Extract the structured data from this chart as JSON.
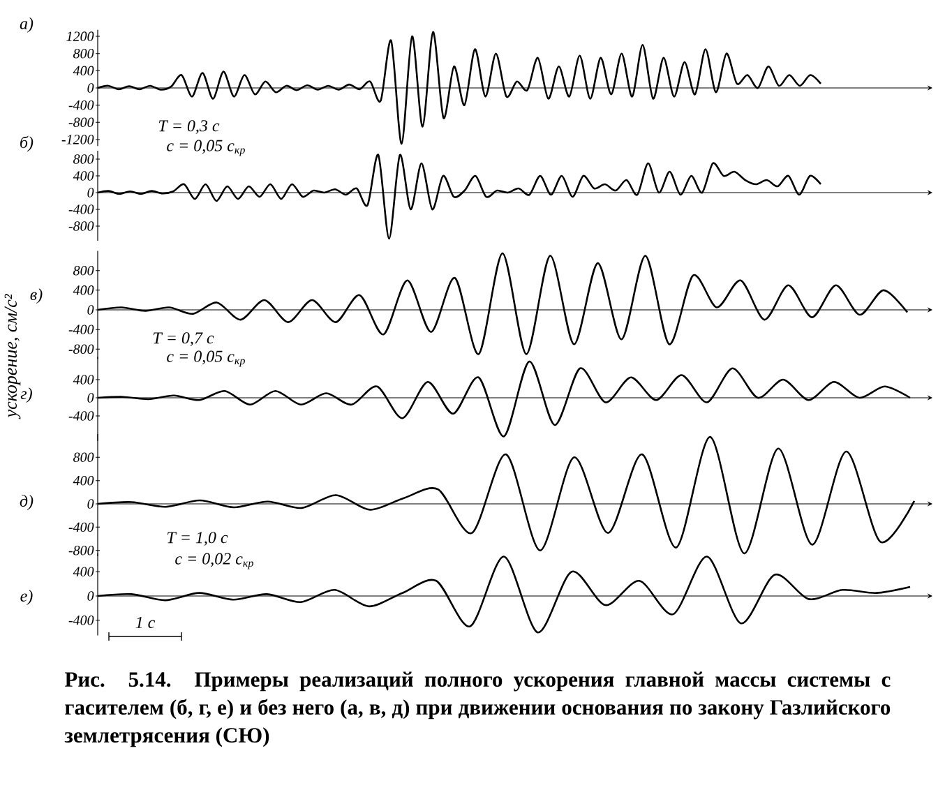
{
  "chart_data": [
    {
      "type": "line",
      "title": "а)",
      "color": "#000000",
      "tick_labels": "y",
      "categories": [
        null,
        null,
        null,
        null,
        null,
        null,
        null,
        null,
        null,
        null,
        null,
        null,
        null,
        null,
        null,
        null,
        null,
        null,
        null,
        null,
        null,
        null,
        null,
        null,
        null,
        null,
        null,
        null,
        null,
        null,
        null,
        null,
        null,
        null,
        null,
        null,
        null,
        null,
        null,
        null,
        null,
        null,
        null,
        null,
        null,
        null,
        null,
        null,
        null,
        null,
        null,
        null,
        null,
        null,
        null,
        null,
        null,
        null,
        null,
        null,
        null,
        null,
        null,
        null,
        null,
        null,
        null,
        null,
        null,
        null
      ],
      "values": [
        0,
        50,
        -30,
        40,
        -30,
        50,
        -40,
        30,
        300,
        -200,
        350,
        -250,
        380,
        -200,
        300,
        -150,
        150,
        -100,
        50,
        -50,
        60,
        -40,
        50,
        -40,
        80,
        -30,
        150,
        -300,
        1100,
        -1300,
        1200,
        -900,
        1300,
        -700,
        500,
        -400,
        900,
        -200,
        800,
        -200,
        150,
        -50,
        700,
        -250,
        500,
        -200,
        750,
        -250,
        700,
        -150,
        800,
        -200,
        1000,
        -250,
        700,
        -200,
        600,
        -150,
        900,
        -100,
        800,
        100,
        300,
        0,
        500,
        50,
        300,
        50,
        300,
        100
      ],
      "ylim": [
        -1350,
        1350
      ],
      "yticks": [
        -1200,
        -800,
        -400,
        0,
        400,
        800,
        1200
      ]
    },
    {
      "type": "line",
      "title": "б)",
      "color": "#000000",
      "tick_labels": "y",
      "categories": [
        null,
        null,
        null,
        null,
        null,
        null,
        null,
        null,
        null,
        null,
        null,
        null,
        null,
        null,
        null,
        null,
        null,
        null,
        null,
        null,
        null,
        null,
        null,
        null,
        null,
        null,
        null,
        null,
        null,
        null,
        null,
        null,
        null,
        null,
        null,
        null,
        null,
        null,
        null,
        null,
        null,
        null,
        null,
        null,
        null,
        null,
        null,
        null,
        null,
        null,
        null,
        null,
        null,
        null,
        null,
        null,
        null,
        null,
        null,
        null,
        null,
        null,
        null,
        null,
        null,
        null,
        null,
        null
      ],
      "values": [
        0,
        40,
        -30,
        30,
        -30,
        40,
        -20,
        30,
        200,
        -150,
        200,
        -200,
        150,
        -150,
        150,
        -100,
        200,
        -150,
        200,
        -100,
        50,
        0,
        80,
        -50,
        100,
        -300,
        900,
        -1100,
        900,
        -400,
        700,
        -400,
        400,
        -100,
        50,
        400,
        -100,
        50,
        0,
        100,
        -50,
        400,
        -50,
        400,
        -100,
        400,
        100,
        200,
        50,
        300,
        -50,
        700,
        0,
        500,
        -50,
        400,
        0,
        700,
        400,
        500,
        300,
        200,
        300,
        150,
        400,
        -50,
        400,
        200
      ],
      "ylim": [
        -1150,
        1000
      ],
      "yticks": [
        -800,
        -400,
        0,
        400,
        800
      ],
      "annotations": [
        "T = 0,3 с",
        "с = 0,05 с$_{кр}$"
      ]
    },
    {
      "type": "line",
      "title": "в)",
      "color": "#000000",
      "tick_labels": "y",
      "ylabel": "ускорение, см/с²",
      "categories": [
        null,
        null,
        null,
        null,
        null,
        null,
        null,
        null,
        null,
        null,
        null,
        null,
        null,
        null,
        null,
        null,
        null,
        null,
        null,
        null,
        null,
        null,
        null,
        null,
        null,
        null,
        null,
        null,
        null,
        null,
        null,
        null,
        null,
        null,
        null
      ],
      "values": [
        0,
        50,
        -20,
        50,
        -80,
        150,
        -200,
        200,
        -250,
        200,
        -250,
        300,
        -500,
        600,
        -450,
        650,
        -900,
        1150,
        -900,
        1100,
        -700,
        950,
        -600,
        1100,
        -700,
        700,
        50,
        600,
        -200,
        500,
        -150,
        500,
        -100,
        400,
        -50
      ],
      "ylim": [
        -1000,
        1200
      ],
      "yticks": [
        -800,
        -400,
        0,
        400,
        800
      ]
    },
    {
      "type": "line",
      "title": "г)",
      "color": "#000000",
      "tick_labels": "y",
      "categories": [
        null,
        null,
        null,
        null,
        null,
        null,
        null,
        null,
        null,
        null,
        null,
        null,
        null,
        null,
        null,
        null,
        null,
        null,
        null,
        null,
        null,
        null,
        null,
        null,
        null,
        null,
        null,
        null,
        null,
        null,
        null,
        null,
        null
      ],
      "values": [
        0,
        20,
        -30,
        50,
        -50,
        150,
        -150,
        150,
        -150,
        100,
        -150,
        250,
        -450,
        350,
        -350,
        450,
        -850,
        800,
        -600,
        650,
        -100,
        450,
        -50,
        500,
        -100,
        650,
        0,
        400,
        -50,
        350,
        0,
        250,
        0
      ],
      "ylim": [
        -950,
        900
      ],
      "yticks": [
        -400,
        0,
        400
      ],
      "annotations": [
        "T = 0,7 с",
        "с = 0,05 с$_{кр}$"
      ]
    },
    {
      "type": "line",
      "title": "д)",
      "color": "#000000",
      "tick_labels": "y",
      "categories": [
        null,
        null,
        null,
        null,
        null,
        null,
        null,
        null,
        null,
        null,
        null,
        null,
        null,
        null,
        null,
        null,
        null,
        null,
        null,
        null,
        null,
        null,
        null,
        null,
        null
      ],
      "values": [
        0,
        30,
        -50,
        60,
        -60,
        40,
        -70,
        150,
        -100,
        100,
        250,
        -500,
        850,
        -800,
        800,
        -500,
        850,
        -750,
        1150,
        -850,
        950,
        -700,
        900,
        -650,
        50
      ],
      "ylim": [
        -900,
        1200
      ],
      "yticks": [
        -800,
        -400,
        0,
        400,
        800
      ]
    },
    {
      "type": "line",
      "title": "е)",
      "color": "#000000",
      "tick_labels": "y",
      "categories": [
        null,
        null,
        null,
        null,
        null,
        null,
        null,
        null,
        null,
        null,
        null,
        null,
        null,
        null,
        null,
        null,
        null,
        null,
        null,
        null,
        null,
        null,
        null,
        null,
        null
      ],
      "values": [
        0,
        30,
        -70,
        50,
        -60,
        30,
        -100,
        100,
        -170,
        50,
        250,
        -500,
        650,
        -600,
        400,
        -150,
        250,
        -300,
        650,
        -450,
        350,
        -50,
        100,
        50,
        150
      ],
      "ylim": [
        -650,
        700
      ],
      "yticks": [
        -400,
        0,
        400
      ],
      "annotations": [
        "T = 1,0 с",
        "с = 0,02 с$_{кр}$",
        "1 с",
        "Рис. 5.14. Примеры реализаций полного ускорения главной массы системы с гасителем (б, г, е) и без него (а, в, д) при движении основания по закону Газлийского землетрясения (СЮ)"
      ]
    }
  ]
}
